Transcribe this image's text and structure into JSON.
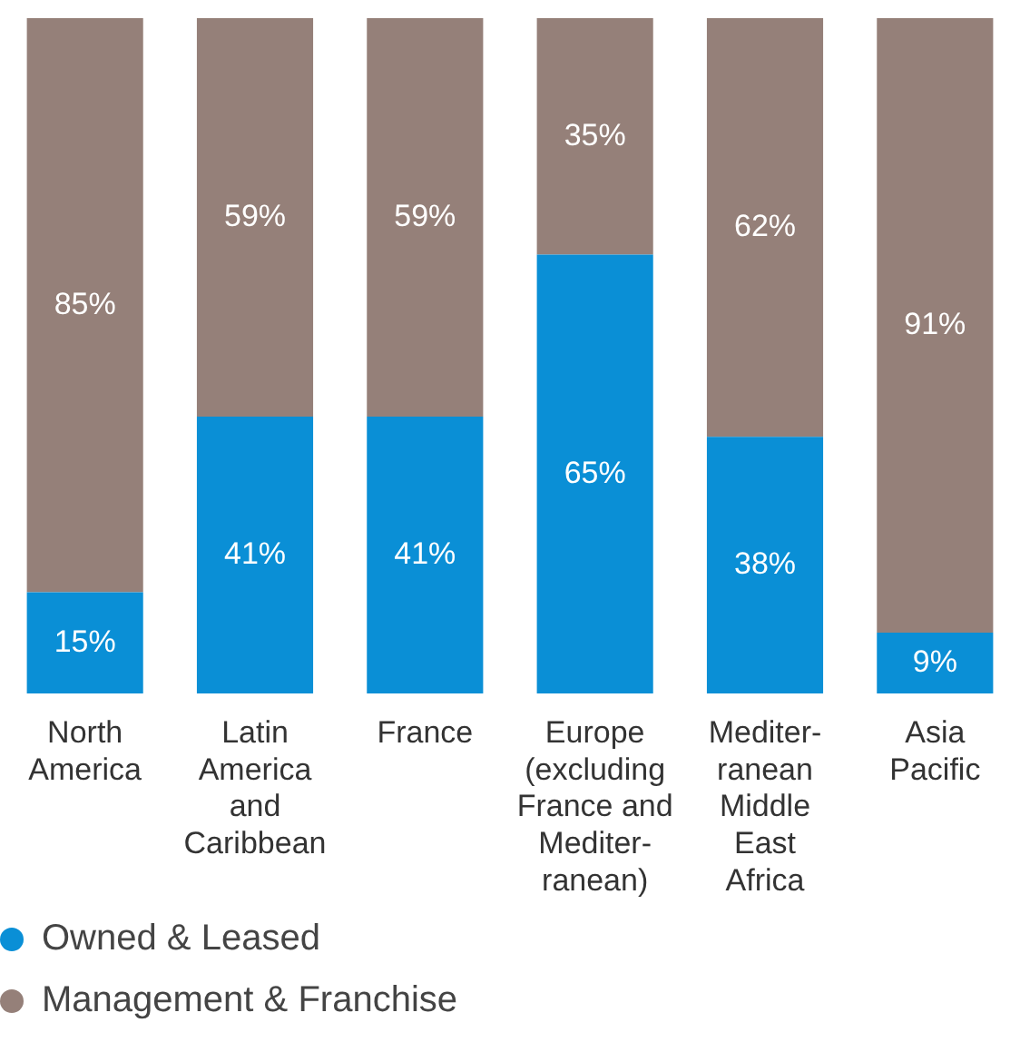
{
  "chart_data": {
    "type": "bar",
    "stacked": true,
    "legend": "bottom left",
    "categories": [
      "North\nAmerica",
      "Latin\nAmerica\nand\nCaribbean",
      "France",
      "Europe\n(excluding\nFrance and\nMediter-\nranean)",
      "Mediter-\nranean\nMiddle\nEast\nAfrica",
      "Asia\nPacific"
    ],
    "series": [
      {
        "name": "Owned & Leased",
        "color": "#0a8fd6",
        "values": [
          15,
          41,
          41,
          65,
          38,
          9
        ],
        "value_labels": [
          "15%",
          "41%",
          "41%",
          "65%",
          "38%",
          "9%"
        ]
      },
      {
        "name": "Management & Franchise",
        "color": "#958079",
        "values": [
          85,
          59,
          59,
          35,
          62,
          91
        ],
        "value_labels": [
          "85%",
          "59%",
          "59%",
          "35%",
          "62%",
          "91%"
        ]
      }
    ]
  }
}
